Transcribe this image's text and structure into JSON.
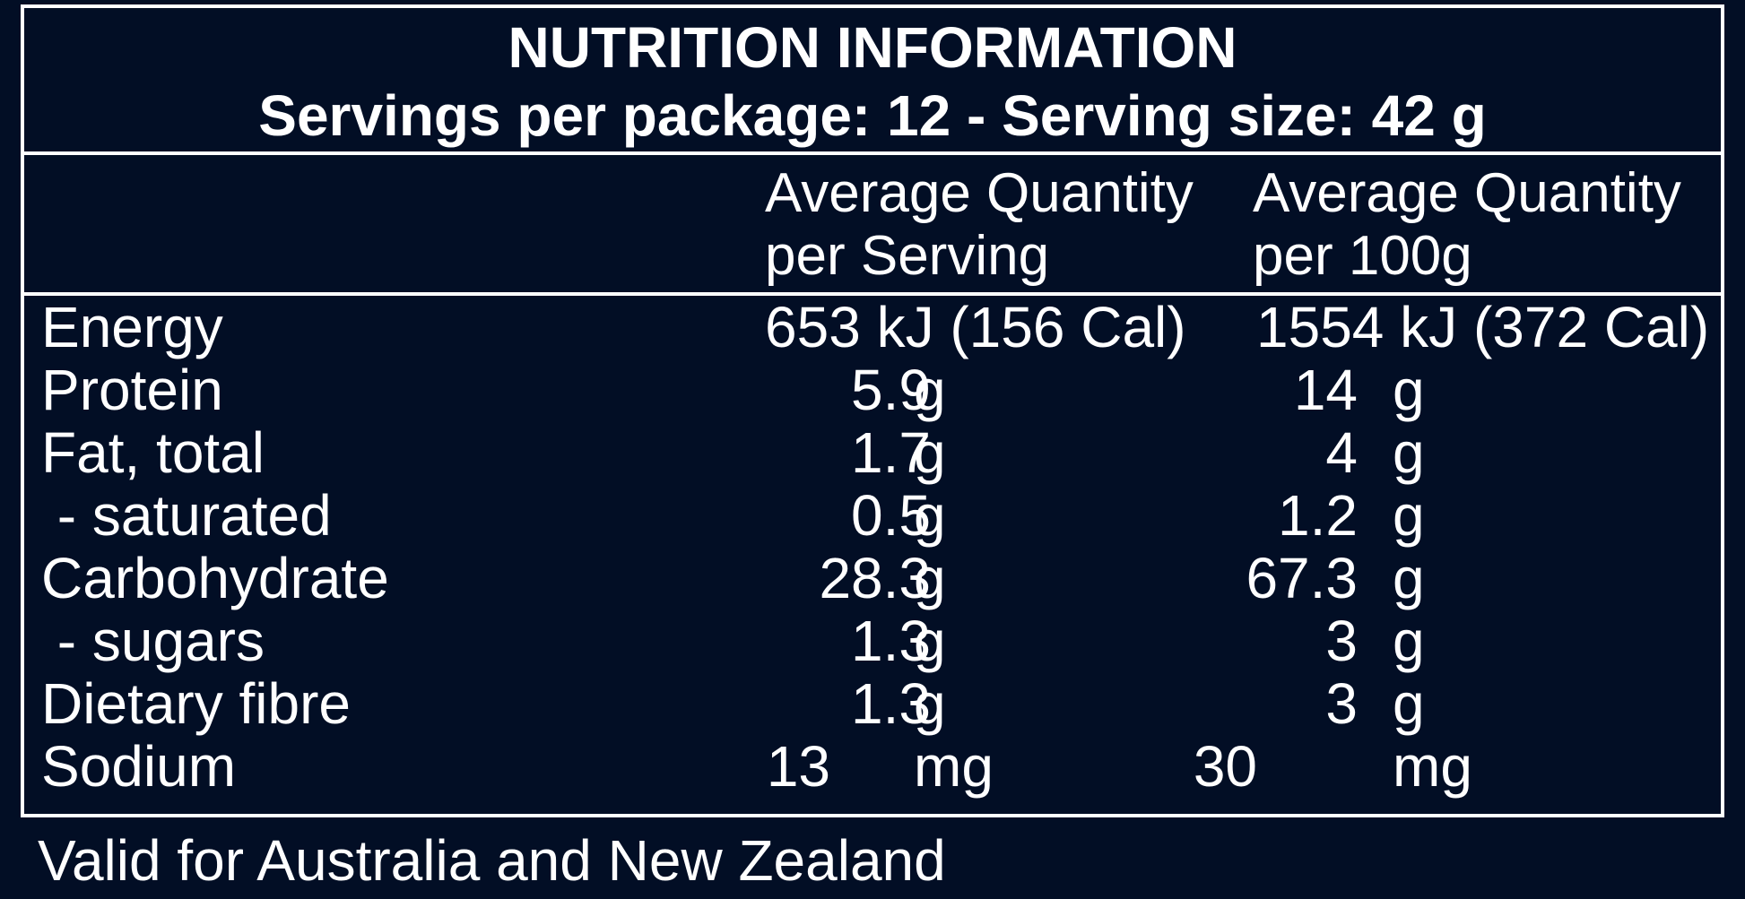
{
  "header": {
    "title": "NUTRITION INFORMATION",
    "subtitle": "Servings per package: 12 - Serving size: 42 g"
  },
  "columns": {
    "per_serving": [
      "Average Quantity",
      "per Serving"
    ],
    "per_100g": [
      "Average Quantity",
      "per 100g"
    ]
  },
  "rows": [
    {
      "nutrient": "Energy",
      "serving_full": "653 kJ (156 Cal)",
      "per100_full": "1554 kJ (372 Cal)"
    },
    {
      "nutrient": "Protein",
      "serving": "5.9",
      "serving_unit": "g",
      "per100": "14",
      "per100_unit": "g"
    },
    {
      "nutrient": "Fat, total",
      "serving": "1.7",
      "serving_unit": "g",
      "per100": "4",
      "per100_unit": "g"
    },
    {
      "nutrient": " - saturated",
      "serving": "0.5",
      "serving_unit": "g",
      "per100": "1.2",
      "per100_unit": "g"
    },
    {
      "nutrient": "Carbohydrate",
      "serving": "28.3",
      "serving_unit": "g",
      "per100": "67.3",
      "per100_unit": "g"
    },
    {
      "nutrient": " - sugars",
      "serving": "1.3",
      "serving_unit": "g",
      "per100": "3",
      "per100_unit": "g"
    },
    {
      "nutrient": "Dietary fibre",
      "serving": "1.3",
      "serving_unit": "g",
      "per100": "3",
      "per100_unit": "g"
    },
    {
      "nutrient": "Sodium",
      "serving": "13",
      "serving_unit": "mg",
      "per100": "30",
      "per100_unit": "mg"
    }
  ],
  "footer": "Valid for Australia and New Zealand",
  "colors": {
    "background": "#020E25",
    "foreground": "#FFFFFF"
  }
}
